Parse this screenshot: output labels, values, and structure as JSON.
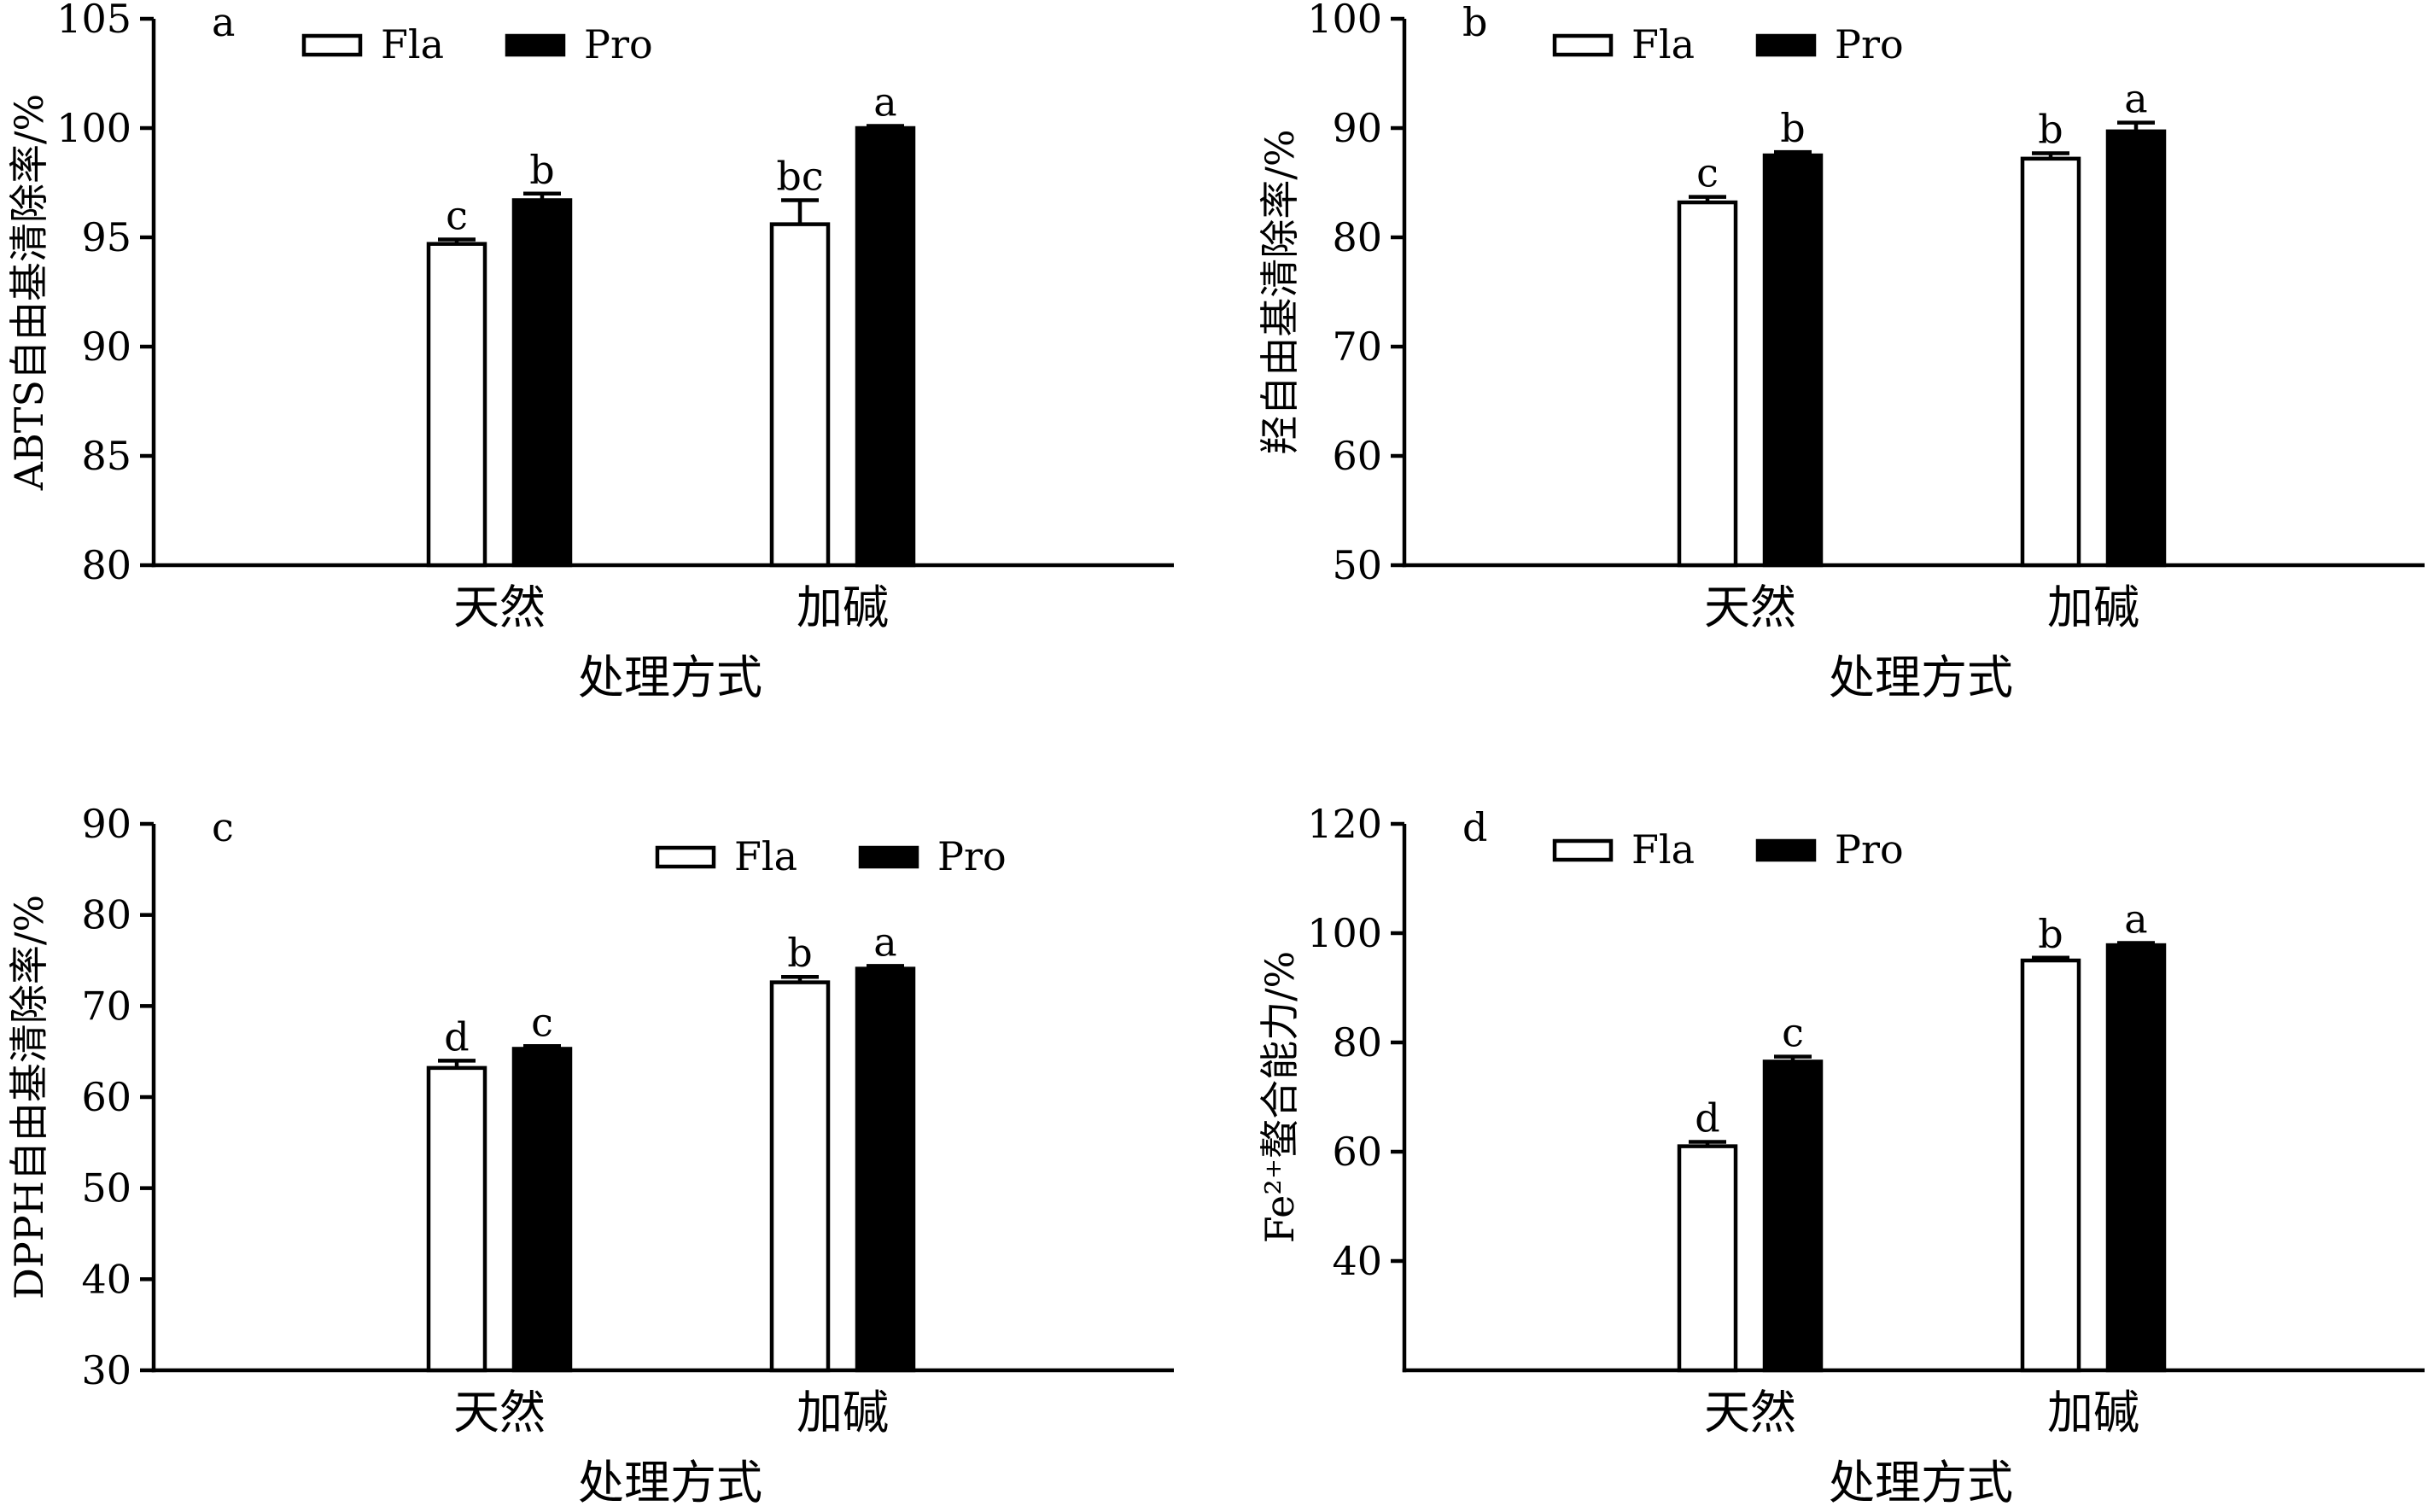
{
  "figure": {
    "panels_count": 4
  },
  "chart_data": [
    {
      "type": "bar",
      "panel_label": "a",
      "categories": [
        "天然",
        "加碱"
      ],
      "xlabel": "处理方式",
      "ylabel": "ABTS自由基清除率/%",
      "ylim": [
        80,
        105
      ],
      "yticks": [
        80,
        85,
        90,
        95,
        100,
        105
      ],
      "legend": {
        "position": "top",
        "entries": [
          "Fla",
          "Pro"
        ]
      },
      "series": [
        {
          "name": "Fla",
          "fill": "#ffffff",
          "values": [
            94.7,
            95.6
          ],
          "errors": [
            0.2,
            1.1
          ],
          "labels": [
            "c",
            "bc"
          ]
        },
        {
          "name": "Pro",
          "fill": "#000000",
          "values": [
            96.7,
            100.0
          ],
          "errors": [
            0.3,
            0.1
          ],
          "labels": [
            "b",
            "a"
          ]
        }
      ]
    },
    {
      "type": "bar",
      "panel_label": "b",
      "categories": [
        "天然",
        "加碱"
      ],
      "xlabel": "处理方式",
      "ylabel": "羟自由基清除率/%",
      "ylim": [
        50,
        100
      ],
      "yticks": [
        50,
        60,
        70,
        80,
        90,
        100
      ],
      "legend": {
        "position": "top",
        "entries": [
          "Fla",
          "Pro"
        ]
      },
      "series": [
        {
          "name": "Fla",
          "fill": "#ffffff",
          "values": [
            83.2,
            87.2
          ],
          "errors": [
            0.5,
            0.5
          ],
          "labels": [
            "c",
            "b"
          ]
        },
        {
          "name": "Pro",
          "fill": "#000000",
          "values": [
            87.5,
            89.7
          ],
          "errors": [
            0.3,
            0.8
          ],
          "labels": [
            "b",
            "a"
          ]
        }
      ]
    },
    {
      "type": "bar",
      "panel_label": "c",
      "categories": [
        "天然",
        "加碱"
      ],
      "xlabel": "处理方式",
      "ylabel": "DPPH自由基清除率/%",
      "ylim": [
        30,
        90
      ],
      "yticks": [
        30,
        40,
        50,
        60,
        70,
        80,
        90
      ],
      "legend": {
        "position": "top-right",
        "entries": [
          "Fla",
          "Pro"
        ]
      },
      "series": [
        {
          "name": "Fla",
          "fill": "#ffffff",
          "values": [
            63.2,
            72.6
          ],
          "errors": [
            0.8,
            0.6
          ],
          "labels": [
            "d",
            "b"
          ]
        },
        {
          "name": "Pro",
          "fill": "#000000",
          "values": [
            65.3,
            74.1
          ],
          "errors": [
            0.3,
            0.3
          ],
          "labels": [
            "c",
            "a"
          ]
        }
      ]
    },
    {
      "type": "bar",
      "panel_label": "d",
      "categories": [
        "天然",
        "加碱"
      ],
      "xlabel": "处理方式",
      "ylabel": "Fe²⁺螯合能力/%",
      "ylim": [
        20,
        120
      ],
      "yticks": [
        40,
        60,
        80,
        100,
        120
      ],
      "legend": {
        "position": "top",
        "entries": [
          "Fla",
          "Pro"
        ]
      },
      "series": [
        {
          "name": "Fla",
          "fill": "#ffffff",
          "values": [
            61.0,
            95.0
          ],
          "errors": [
            0.8,
            0.5
          ],
          "labels": [
            "d",
            "b"
          ]
        },
        {
          "name": "Pro",
          "fill": "#000000",
          "values": [
            76.5,
            97.8
          ],
          "errors": [
            0.9,
            0.4
          ],
          "labels": [
            "c",
            "a"
          ]
        }
      ]
    }
  ]
}
